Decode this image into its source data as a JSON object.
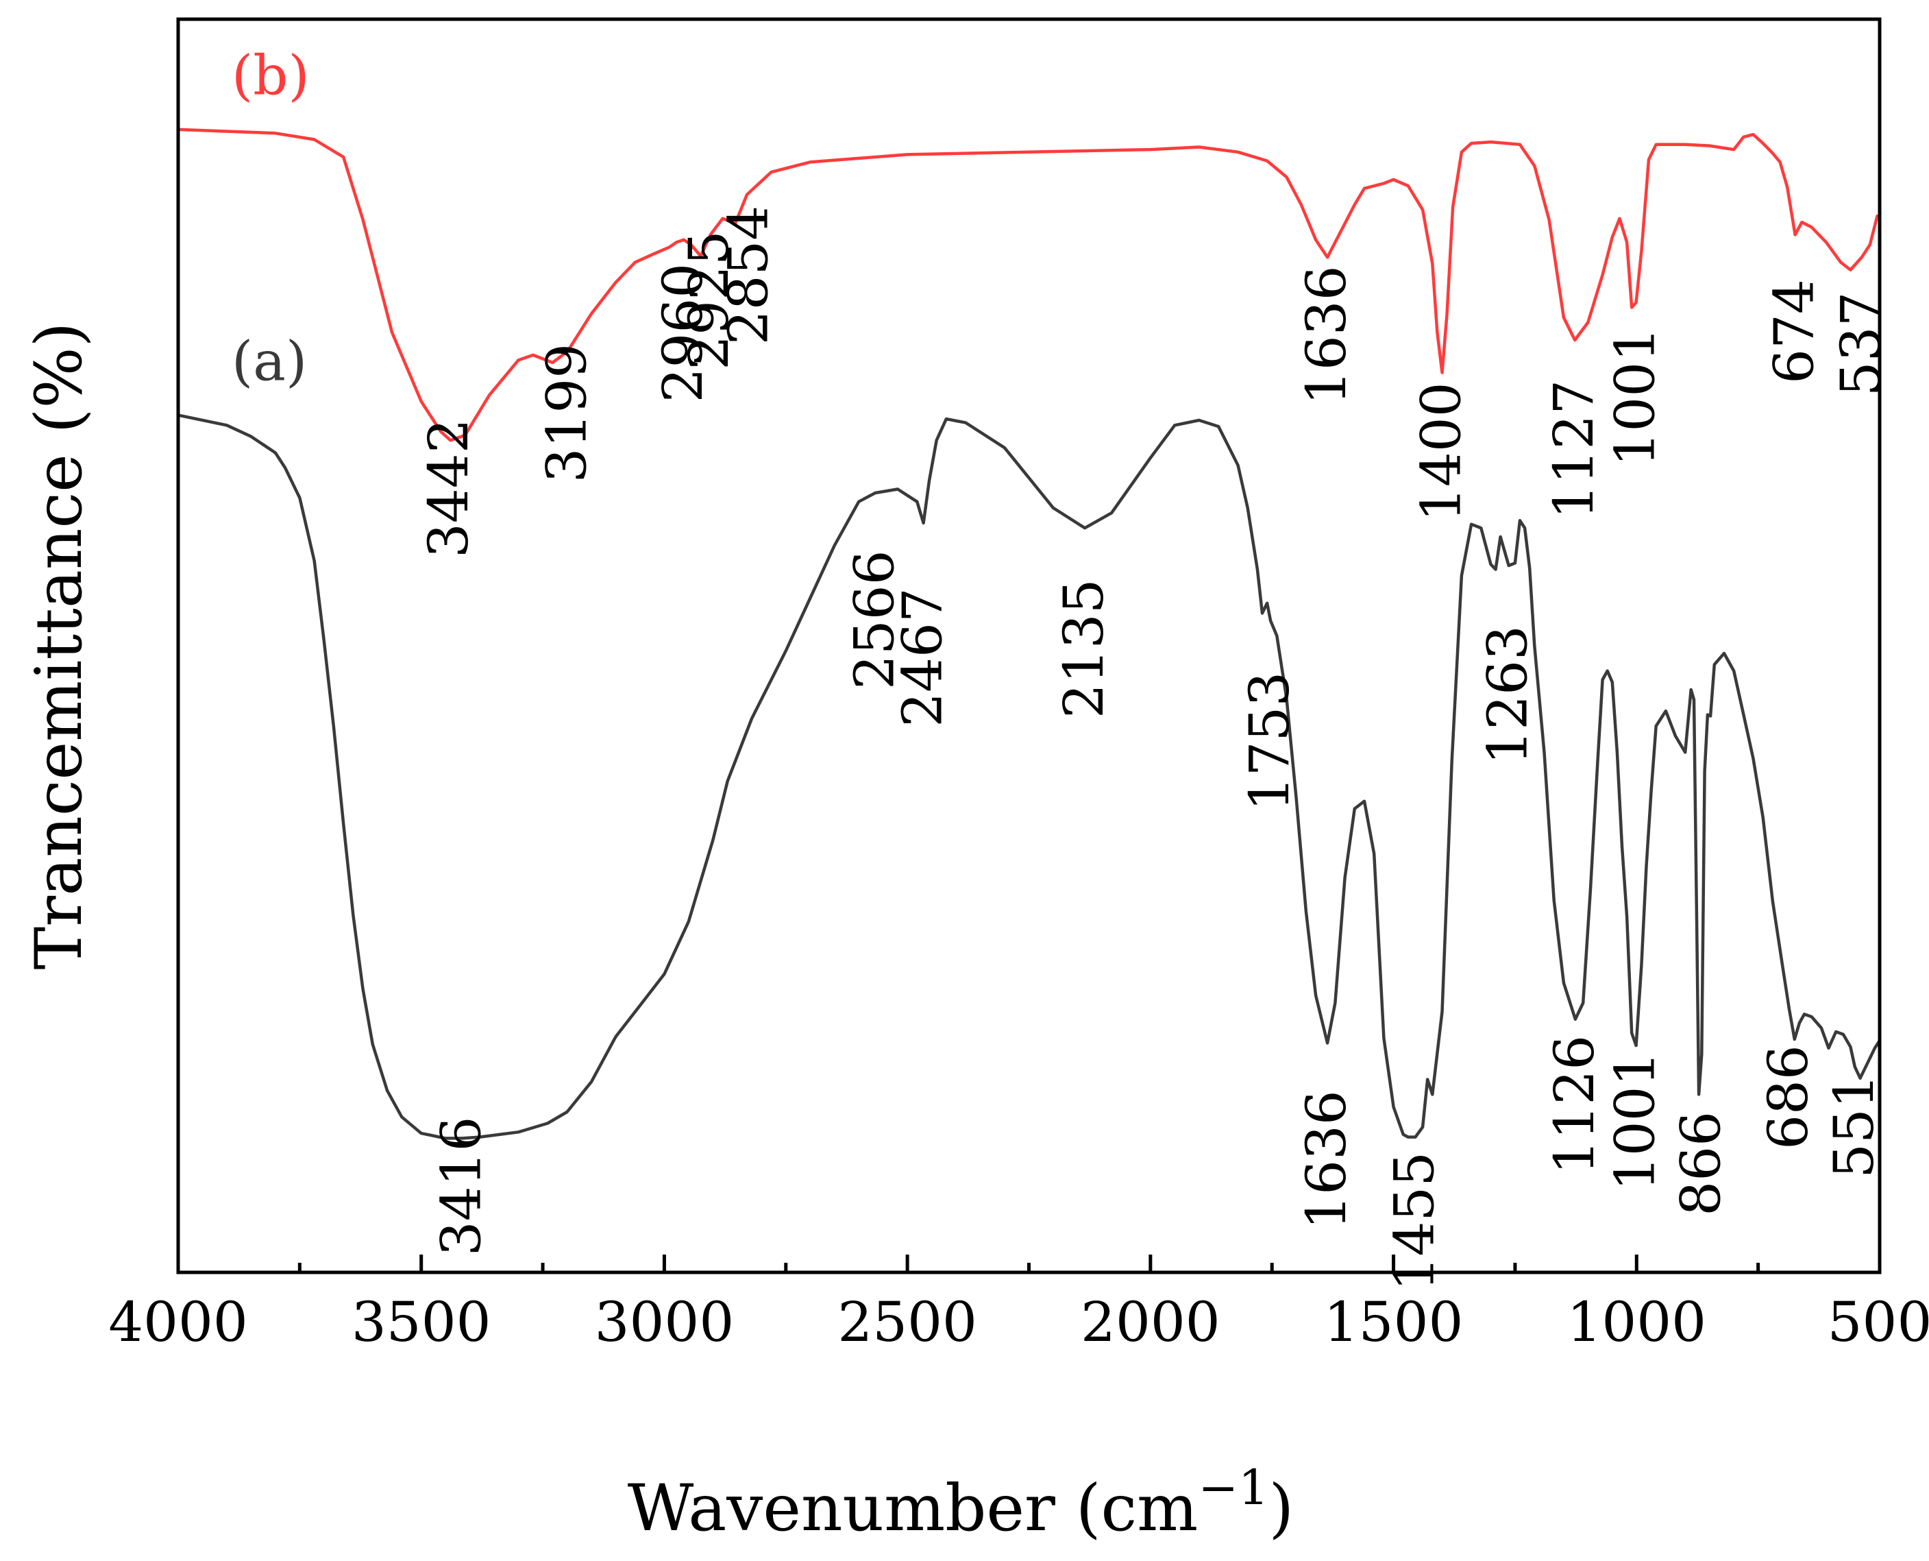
{
  "chart_data": {
    "type": "line",
    "xlabel": "Wavenumber (cm",
    "xlabel_sup": "−1",
    "xlabel_close": ")",
    "ylabel": "Trancemittance (%)",
    "xlim": [
      4000,
      500
    ],
    "ylim": [
      0,
      100
    ],
    "x_ticks": [
      4000,
      3500,
      3000,
      2500,
      2000,
      1500,
      1000,
      500
    ],
    "x_tick_labels": [
      "4000",
      "3500",
      "3000",
      "2500",
      "2000",
      "1500",
      "1000",
      "500"
    ],
    "x_minor_ticks": [
      3750,
      3250,
      2750,
      2250,
      1750,
      1250,
      750
    ],
    "y_ticks_shown": false,
    "series": [
      {
        "name": "(b)",
        "color": "#ff3b3b",
        "x": [
          4000,
          3800,
          3720,
          3660,
          3620,
          3560,
          3500,
          3460,
          3440,
          3410,
          3360,
          3300,
          3270,
          3230,
          3199,
          3150,
          3100,
          3060,
          3020,
          2990,
          2975,
          2960,
          2945,
          2925,
          2905,
          2880,
          2854,
          2830,
          2780,
          2700,
          2500,
          2000,
          1900,
          1820,
          1760,
          1720,
          1690,
          1660,
          1636,
          1612,
          1580,
          1560,
          1520,
          1500,
          1470,
          1440,
          1420,
          1410,
          1400,
          1390,
          1378,
          1360,
          1340,
          1300,
          1240,
          1210,
          1180,
          1150,
          1127,
          1100,
          1070,
          1050,
          1035,
          1020,
          1010,
          1001,
          990,
          975,
          960,
          900,
          850,
          800,
          780,
          760,
          740,
          720,
          705,
          690,
          674,
          660,
          640,
          610,
          580,
          560,
          537,
          520,
          505
        ],
        "y": [
          91.2,
          90.9,
          90.4,
          89.0,
          84.0,
          75.0,
          69.5,
          67.1,
          66.4,
          66.8,
          70.0,
          72.8,
          73.2,
          72.6,
          73.5,
          76.5,
          79.0,
          80.6,
          81.3,
          81.8,
          82.2,
          82.4,
          82.0,
          81.1,
          82.8,
          84.1,
          83.7,
          86.0,
          87.8,
          88.6,
          89.2,
          89.6,
          89.8,
          89.4,
          88.7,
          87.4,
          85.2,
          82.4,
          81.0,
          82.8,
          85.2,
          86.5,
          86.9,
          87.2,
          86.7,
          84.8,
          80.5,
          75.0,
          71.8,
          76.5,
          85.0,
          89.4,
          90.1,
          90.2,
          90.0,
          88.3,
          84.0,
          76.2,
          74.4,
          75.8,
          79.6,
          82.6,
          84.1,
          82.2,
          77.0,
          77.4,
          81.5,
          88.8,
          90.0,
          90.0,
          89.9,
          89.6,
          90.6,
          90.8,
          90.1,
          89.3,
          88.6,
          86.6,
          82.8,
          83.8,
          83.4,
          82.2,
          80.6,
          80.0,
          81.0,
          82.0,
          84.3
        ]
      },
      {
        "name": "(a)",
        "color": "#3a3a3a",
        "x": [
          4000,
          3900,
          3850,
          3800,
          3780,
          3750,
          3720,
          3700,
          3680,
          3660,
          3640,
          3620,
          3600,
          3570,
          3540,
          3500,
          3450,
          3416,
          3380,
          3300,
          3240,
          3200,
          3150,
          3100,
          3050,
          3000,
          2950,
          2900,
          2870,
          2820,
          2750,
          2700,
          2650,
          2600,
          2566,
          2520,
          2480,
          2467,
          2455,
          2440,
          2420,
          2380,
          2300,
          2200,
          2135,
          2080,
          2000,
          1950,
          1900,
          1860,
          1820,
          1800,
          1780,
          1770,
          1760,
          1753,
          1740,
          1720,
          1700,
          1680,
          1660,
          1636,
          1620,
          1600,
          1580,
          1560,
          1540,
          1520,
          1500,
          1480,
          1470,
          1455,
          1440,
          1430,
          1420,
          1410,
          1400,
          1380,
          1360,
          1340,
          1320,
          1300,
          1290,
          1280,
          1263,
          1250,
          1240,
          1230,
          1220,
          1210,
          1190,
          1170,
          1150,
          1126,
          1110,
          1095,
          1080,
          1070,
          1060,
          1050,
          1040,
          1030,
          1020,
          1010,
          1001,
          990,
          980,
          970,
          960,
          940,
          920,
          900,
          888,
          882,
          876,
          872,
          866,
          860,
          854,
          848,
          840,
          820,
          800,
          780,
          760,
          740,
          720,
          700,
          686,
          675,
          665,
          655,
          640,
          620,
          605,
          590,
          575,
          560,
          551,
          540,
          525,
          510,
          500
        ],
        "y": [
          68.4,
          67.6,
          66.7,
          65.4,
          64.2,
          61.8,
          56.8,
          50.4,
          43.5,
          35.8,
          28.5,
          22.6,
          18.2,
          14.5,
          12.4,
          11.1,
          10.7,
          10.7,
          10.8,
          11.2,
          11.9,
          12.8,
          15.2,
          18.8,
          21.3,
          23.8,
          28.0,
          34.5,
          39.2,
          44.2,
          49.6,
          53.8,
          58.0,
          61.5,
          62.2,
          62.5,
          61.5,
          59.8,
          63.2,
          66.4,
          68.1,
          67.8,
          65.8,
          61.0,
          59.4,
          60.6,
          65.0,
          67.6,
          68.0,
          67.5,
          64.4,
          61.0,
          56.1,
          52.6,
          53.4,
          52.0,
          50.8,
          45.8,
          37.8,
          28.8,
          22.1,
          18.3,
          21.5,
          31.5,
          37.0,
          37.6,
          33.4,
          18.7,
          13.2,
          11.0,
          10.8,
          10.8,
          11.6,
          15.4,
          14.2,
          17.5,
          20.8,
          40.8,
          55.6,
          59.7,
          59.4,
          56.5,
          56.1,
          58.7,
          56.4,
          56.6,
          60.0,
          59.4,
          56.2,
          50.0,
          41.5,
          29.7,
          23.1,
          20.2,
          21.5,
          30.5,
          40.8,
          47.3,
          48.0,
          47.1,
          41.5,
          34.0,
          28.4,
          19.1,
          18.1,
          24.5,
          32.4,
          38.4,
          43.6,
          44.8,
          42.8,
          41.5,
          46.5,
          45.7,
          26.9,
          14.2,
          17.4,
          40.0,
          44.5,
          44.4,
          48.5,
          49.4,
          48.0,
          44.5,
          41.0,
          36.3,
          29.6,
          24.5,
          21.0,
          18.6,
          19.9,
          20.6,
          20.4,
          19.5,
          17.9,
          19.2,
          19.0,
          18.0,
          16.4,
          15.5,
          16.7,
          17.9,
          18.5
        ]
      }
    ],
    "series_labels": [
      {
        "text": "(b)",
        "x": 3890,
        "y": 94.0,
        "color": "#ff3b3b"
      },
      {
        "text": "(a)",
        "x": 3890,
        "y": 71.2,
        "color": "#3a3a3a"
      }
    ],
    "annotations": [
      {
        "text": "3442",
        "x": 3442,
        "y": 57.0
      },
      {
        "text": "3199",
        "x": 3199,
        "y": 63.0
      },
      {
        "text": "2960",
        "x": 2960,
        "y": 69.4
      },
      {
        "text": "2925",
        "x": 2906,
        "y": 72.0
      },
      {
        "text": "2854",
        "x": 2825,
        "y": 74.0
      },
      {
        "text": "1636",
        "x": 1636,
        "y": 69.2
      },
      {
        "text": "1400",
        "x": 1400,
        "y": 59.9
      },
      {
        "text": "1127",
        "x": 1127,
        "y": 60.1
      },
      {
        "text": "1001",
        "x": 1001,
        "y": 64.3
      },
      {
        "text": "674",
        "x": 674,
        "y": 70.9
      },
      {
        "text": "537",
        "x": 537,
        "y": 69.9
      },
      {
        "text": "3416",
        "x": 3416,
        "y": 1.3
      },
      {
        "text": "2566",
        "x": 2566,
        "y": 46.5
      },
      {
        "text": "2467",
        "x": 2467,
        "y": 43.5
      },
      {
        "text": "2135",
        "x": 2135,
        "y": 44.2
      },
      {
        "text": "1753",
        "x": 1753,
        "y": 36.8
      },
      {
        "text": "1636",
        "x": 1636,
        "y": 3.4
      },
      {
        "text": "1455",
        "x": 1455,
        "y": -1.5
      },
      {
        "text": "1263",
        "x": 1263,
        "y": 40.5
      },
      {
        "text": "1126",
        "x": 1126,
        "y": 7.8
      },
      {
        "text": "1001",
        "x": 1001,
        "y": 6.5
      },
      {
        "text": "866",
        "x": 866,
        "y": 4.5
      },
      {
        "text": "686",
        "x": 686,
        "y": 9.8
      },
      {
        "text": "551",
        "x": 551,
        "y": 7.5
      }
    ]
  }
}
